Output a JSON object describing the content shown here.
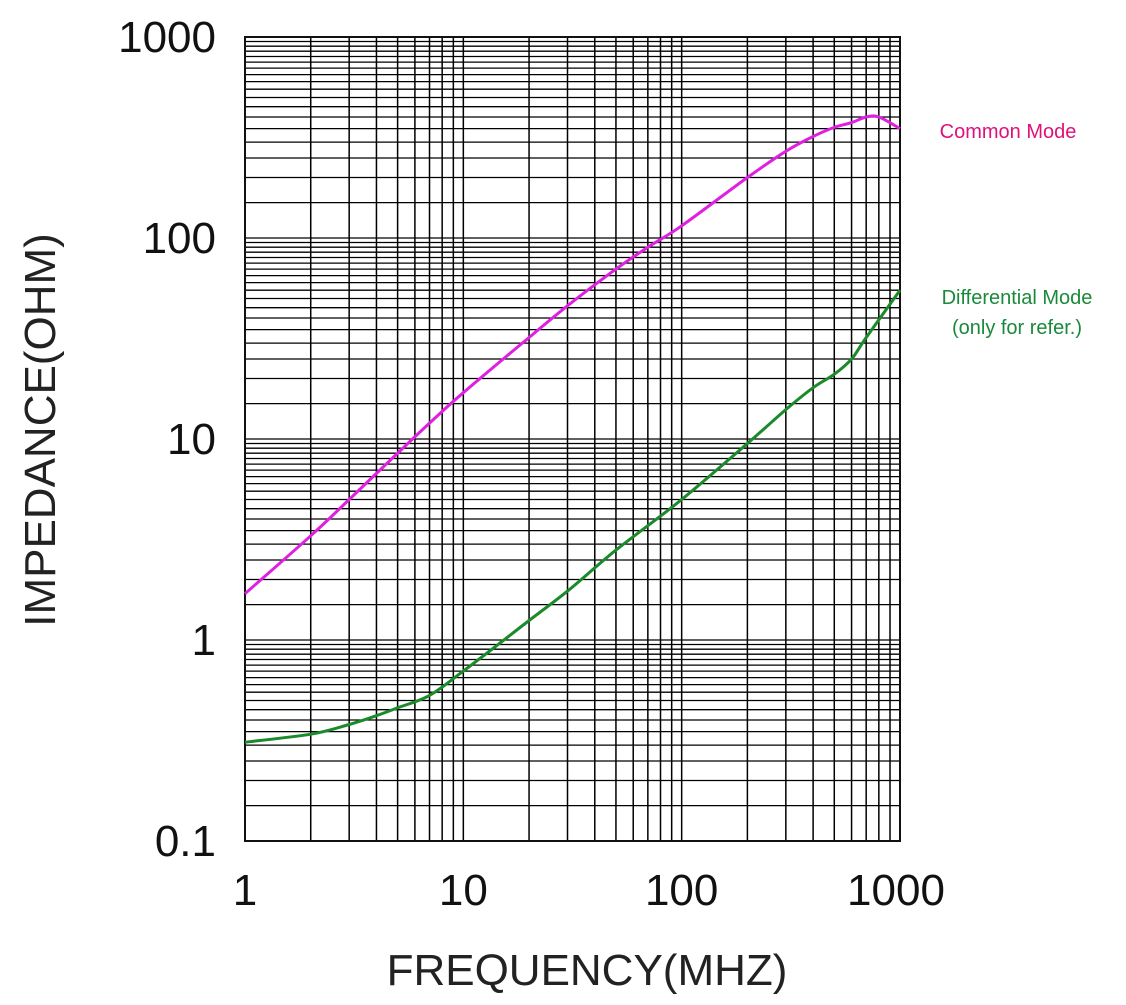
{
  "chart_data": {
    "type": "line",
    "xlabel": "FREQUENCY(MHZ)",
    "ylabel": "IMPEDANCE(OHM)",
    "xscale": "log",
    "yscale": "log",
    "xlim": [
      1,
      1000
    ],
    "ylim": [
      0.1,
      1000
    ],
    "grid": true,
    "x_tick_labels": [
      "1",
      "10",
      "100",
      "1000"
    ],
    "y_tick_labels": [
      "0.1",
      "1",
      "10",
      "100",
      "1000"
    ],
    "series": [
      {
        "name": "Common Mode",
        "color": "#e020e0",
        "label_color": "#e0107a",
        "x": [
          1,
          2,
          3,
          5,
          7,
          10,
          20,
          30,
          50,
          70,
          100,
          200,
          300,
          400,
          500,
          600,
          700,
          800,
          1000
        ],
        "y": [
          1.7,
          3.3,
          5.0,
          8.5,
          12,
          17,
          32,
          46,
          70,
          90,
          115,
          200,
          270,
          320,
          355,
          375,
          400,
          400,
          350
        ]
      },
      {
        "name": "Differential Mode",
        "annotation": "(only for refer.)",
        "color": "#1a8a2a",
        "label_color": "#1a8a3a",
        "x": [
          1,
          2,
          3,
          4,
          5,
          7,
          10,
          20,
          30,
          50,
          100,
          200,
          300,
          400,
          500,
          600,
          700,
          1000
        ],
        "y": [
          0.31,
          0.34,
          0.38,
          0.42,
          0.46,
          0.53,
          0.7,
          1.25,
          1.75,
          2.8,
          5.0,
          9.5,
          14,
          18,
          21,
          25,
          32,
          55
        ]
      }
    ]
  }
}
